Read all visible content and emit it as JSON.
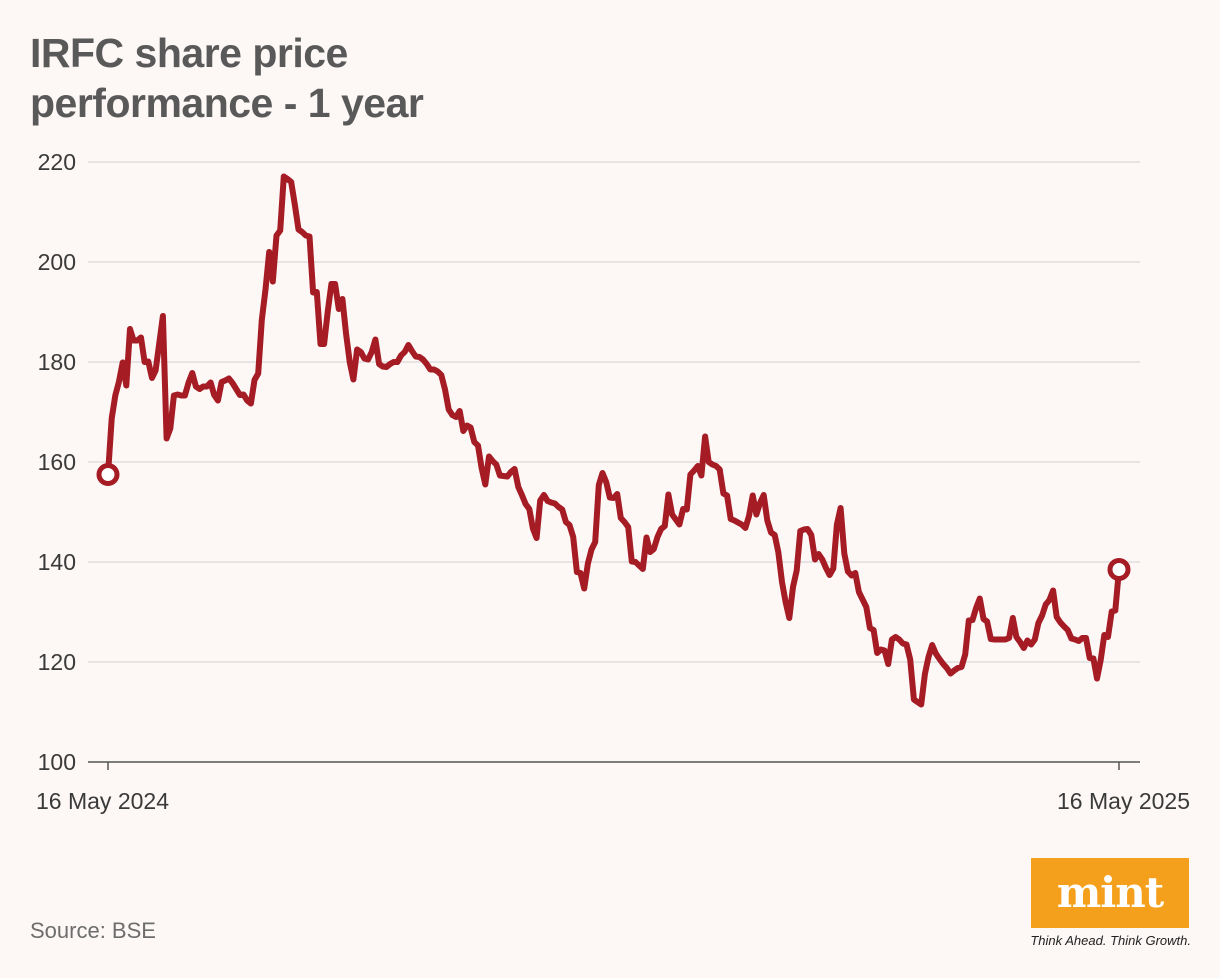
{
  "title": "IRFC share price performance - 1 year",
  "source": "Source: BSE",
  "logo": {
    "word": "mint",
    "tagline": "Think Ahead. Think Growth."
  },
  "colors": {
    "line": "#a51c24",
    "grid": "#dedede",
    "axis": "#555555",
    "logo_bg": "#f5a01c",
    "background": "#fdf7f6"
  },
  "chart_data": {
    "type": "line",
    "title": "IRFC share price performance - 1 year",
    "xlabel": "",
    "ylabel": "",
    "ylim": [
      100,
      220
    ],
    "yticks": [
      100,
      120,
      140,
      160,
      180,
      200,
      220
    ],
    "xtick_labels": [
      "16 May 2024",
      "16 May 2025"
    ],
    "grid": true,
    "start_value": 157.5,
    "end_value": 138.5,
    "series": [
      {
        "name": "IRFC",
        "values": [
          157.5,
          168.7,
          173.3,
          176.1,
          179.9,
          175.3,
          186.6,
          184.3,
          184.3,
          184.9,
          180.0,
          180.1,
          176.8,
          178.3,
          183.8,
          189.2,
          164.7,
          166.7,
          173.3,
          173.5,
          173.3,
          173.3,
          175.9,
          177.8,
          175.1,
          174.6,
          175.1,
          175.1,
          175.9,
          173.4,
          172.3,
          176.0,
          176.3,
          176.7,
          175.8,
          174.6,
          173.4,
          173.5,
          172.3,
          171.7,
          176.4,
          177.7,
          188.4,
          194.5,
          202.0,
          196.1,
          205.3,
          206.3,
          217.1,
          216.6,
          216.0,
          211.5,
          206.5,
          206.0,
          205.3,
          205.1,
          193.9,
          194.0,
          183.6,
          183.6,
          190.2,
          195.6,
          195.6,
          190.6,
          192.6,
          185.6,
          179.9,
          176.5,
          182.5,
          182.0,
          180.7,
          180.5,
          182.0,
          184.5,
          179.6,
          179.1,
          179.0,
          179.6,
          180.0,
          180.0,
          181.3,
          182.0,
          183.4,
          182.2,
          181.1,
          181.0,
          180.5,
          179.6,
          178.5,
          178.5,
          178.1,
          177.4,
          174.5,
          170.5,
          169.4,
          169.0,
          170.2,
          166.2,
          167.3,
          166.9,
          164.0,
          163.3,
          158.8,
          155.5,
          161.1,
          160.2,
          159.5,
          157.3,
          157.2,
          157.1,
          158.0,
          158.6,
          155.0,
          153.4,
          151.6,
          150.6,
          146.7,
          144.8,
          152.3,
          153.4,
          152.2,
          151.9,
          151.7,
          151.0,
          150.5,
          148.0,
          147.4,
          145.0,
          138.0,
          137.8,
          134.7,
          139.7,
          142.5,
          144.0,
          155.4,
          157.8,
          156.0,
          152.9,
          152.8,
          153.6,
          148.8,
          148.0,
          147.0,
          140.1,
          140.0,
          139.3,
          138.6,
          144.9,
          142.0,
          142.6,
          145.0,
          146.6,
          147.2,
          153.5,
          149.5,
          148.5,
          147.5,
          150.6,
          150.5,
          157.5,
          158.3,
          159.2,
          157.3,
          165.1,
          160.0,
          159.5,
          159.2,
          158.5,
          153.7,
          153.3,
          148.6,
          148.3,
          147.9,
          147.5,
          146.8,
          149.2,
          153.3,
          149.5,
          151.8,
          153.4,
          148.3,
          145.9,
          145.4,
          142.0,
          136.0,
          131.9,
          128.8,
          135.0,
          138.3,
          146.2,
          146.5,
          146.6,
          145.4,
          140.5,
          141.6,
          140.5,
          138.8,
          137.4,
          138.7,
          147.5,
          150.8,
          141.7,
          138.1,
          137.3,
          137.8,
          134.0,
          132.5,
          131.0,
          126.8,
          126.4,
          121.8,
          122.5,
          122.3,
          119.6,
          124.5,
          125.0,
          124.5,
          123.7,
          123.5,
          120.5,
          112.5,
          112.0,
          111.5,
          117.6,
          121.0,
          123.4,
          121.7,
          120.6,
          119.6,
          118.8,
          117.7,
          118.3,
          118.8,
          119.0,
          121.5,
          128.3,
          128.4,
          130.8,
          132.7,
          128.6,
          128.1,
          124.6,
          124.5,
          124.5,
          124.5,
          124.5,
          124.8,
          128.8,
          125.0,
          124.0,
          122.8,
          124.3,
          123.5,
          124.5,
          127.8,
          129.3,
          131.5,
          132.4,
          134.3,
          129.0,
          127.9,
          127.1,
          126.4,
          124.7,
          124.5,
          124.2,
          124.8,
          124.8,
          120.8,
          120.7,
          116.7,
          120.4,
          125.4,
          125.0,
          130.1,
          130.3,
          138.5
        ]
      }
    ]
  }
}
